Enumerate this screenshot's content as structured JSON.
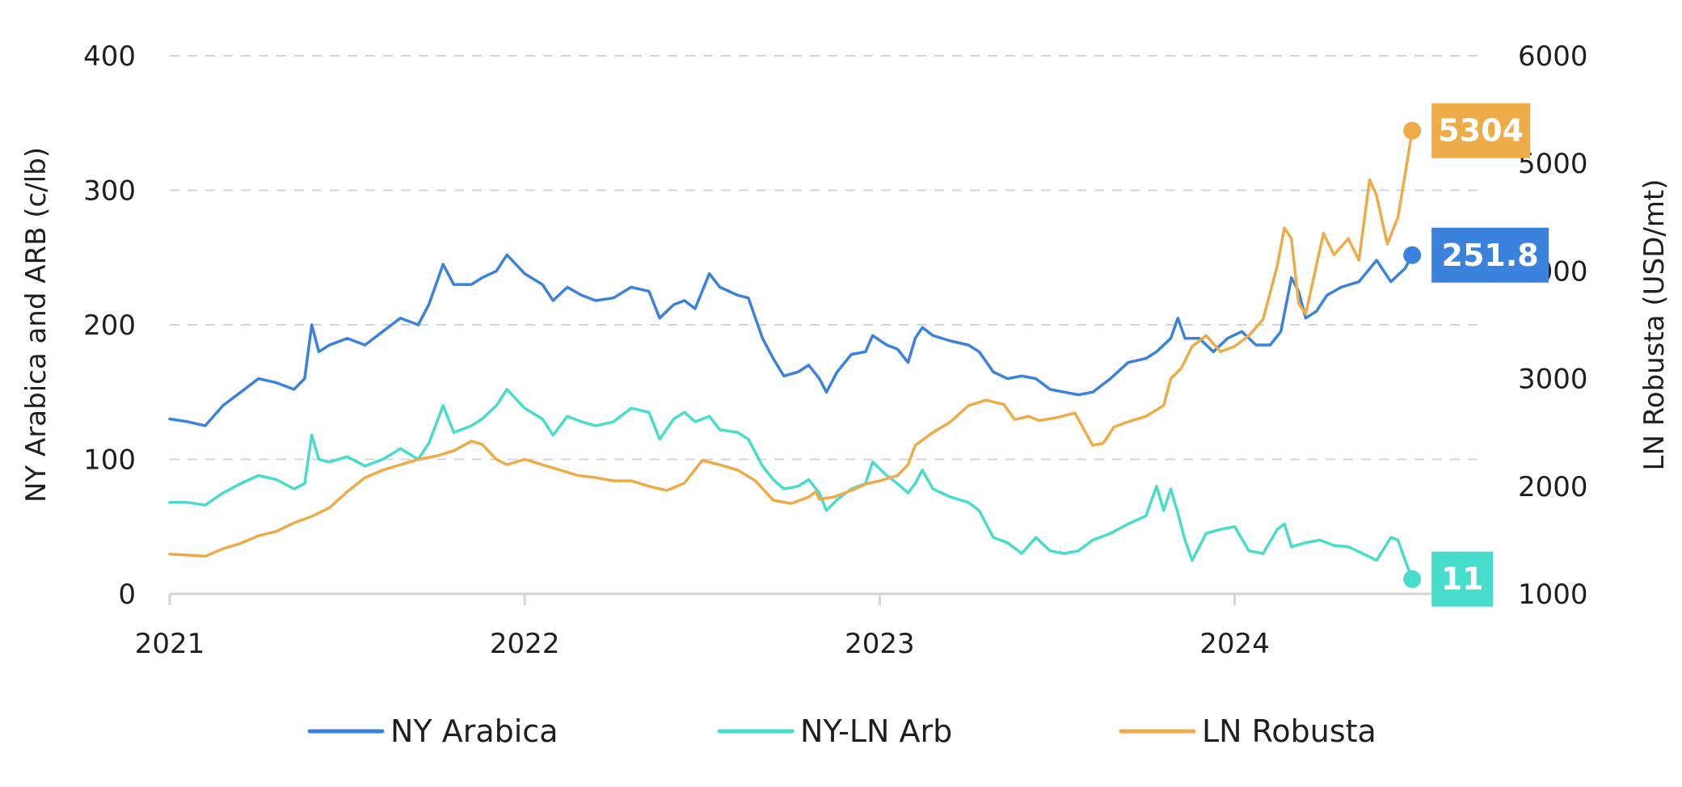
{
  "chart_data": {
    "type": "line",
    "title": "",
    "left_axis": {
      "label": "NY Arabica and ARB (c/lb)",
      "ylim": [
        0,
        400
      ],
      "ticks": [
        0,
        100,
        200,
        300,
        400
      ],
      "tick_labels": [
        "0",
        "100",
        "200",
        "300",
        "400"
      ]
    },
    "right_axis": {
      "label": "LN Robusta (USD/mt)",
      "ylim": [
        1000,
        6000
      ],
      "ticks": [
        1000,
        2000,
        3000,
        4000,
        5000,
        6000
      ],
      "tick_labels": [
        "1000",
        "2000",
        "3000",
        "4000",
        "5000",
        "6000"
      ]
    },
    "x_axis": {
      "xlim": [
        2021.0,
        2024.7
      ],
      "ticks": [
        2021,
        2022,
        2023,
        2024
      ],
      "tick_labels": [
        "2021",
        "2022",
        "2023",
        "2024"
      ]
    },
    "grid": "horizontal-dashed",
    "legend_position": "bottom",
    "series": [
      {
        "name": "NY Arabica",
        "axis": "left",
        "color": "#3b82dc",
        "end_label": "251.8",
        "points": [
          [
            2021.0,
            130
          ],
          [
            2021.05,
            128
          ],
          [
            2021.1,
            125
          ],
          [
            2021.15,
            140
          ],
          [
            2021.2,
            150
          ],
          [
            2021.25,
            160
          ],
          [
            2021.3,
            157
          ],
          [
            2021.35,
            152
          ],
          [
            2021.38,
            160
          ],
          [
            2021.4,
            200
          ],
          [
            2021.42,
            180
          ],
          [
            2021.45,
            185
          ],
          [
            2021.5,
            190
          ],
          [
            2021.55,
            185
          ],
          [
            2021.6,
            195
          ],
          [
            2021.65,
            205
          ],
          [
            2021.7,
            200
          ],
          [
            2021.73,
            215
          ],
          [
            2021.77,
            245
          ],
          [
            2021.8,
            230
          ],
          [
            2021.85,
            230
          ],
          [
            2021.88,
            235
          ],
          [
            2021.92,
            240
          ],
          [
            2021.95,
            252
          ],
          [
            2022.0,
            238
          ],
          [
            2022.05,
            230
          ],
          [
            2022.08,
            218
          ],
          [
            2022.12,
            228
          ],
          [
            2022.16,
            222
          ],
          [
            2022.2,
            218
          ],
          [
            2022.25,
            220
          ],
          [
            2022.3,
            228
          ],
          [
            2022.35,
            225
          ],
          [
            2022.38,
            205
          ],
          [
            2022.42,
            215
          ],
          [
            2022.45,
            218
          ],
          [
            2022.48,
            212
          ],
          [
            2022.52,
            238
          ],
          [
            2022.55,
            228
          ],
          [
            2022.6,
            222
          ],
          [
            2022.63,
            220
          ],
          [
            2022.67,
            190
          ],
          [
            2022.7,
            175
          ],
          [
            2022.73,
            162
          ],
          [
            2022.77,
            165
          ],
          [
            2022.8,
            170
          ],
          [
            2022.83,
            160
          ],
          [
            2022.85,
            150
          ],
          [
            2022.88,
            165
          ],
          [
            2022.92,
            178
          ],
          [
            2022.96,
            180
          ],
          [
            2022.98,
            192
          ],
          [
            2023.02,
            185
          ],
          [
            2023.05,
            182
          ],
          [
            2023.08,
            172
          ],
          [
            2023.1,
            190
          ],
          [
            2023.12,
            198
          ],
          [
            2023.15,
            192
          ],
          [
            2023.2,
            188
          ],
          [
            2023.25,
            185
          ],
          [
            2023.28,
            180
          ],
          [
            2023.32,
            165
          ],
          [
            2023.36,
            160
          ],
          [
            2023.4,
            162
          ],
          [
            2023.44,
            160
          ],
          [
            2023.48,
            152
          ],
          [
            2023.52,
            150
          ],
          [
            2023.56,
            148
          ],
          [
            2023.6,
            150
          ],
          [
            2023.65,
            160
          ],
          [
            2023.7,
            172
          ],
          [
            2023.75,
            175
          ],
          [
            2023.78,
            180
          ],
          [
            2023.82,
            190
          ],
          [
            2023.84,
            205
          ],
          [
            2023.86,
            190
          ],
          [
            2023.9,
            190
          ],
          [
            2023.94,
            180
          ],
          [
            2023.98,
            190
          ],
          [
            2024.02,
            195
          ],
          [
            2024.06,
            185
          ],
          [
            2024.1,
            185
          ],
          [
            2024.13,
            195
          ],
          [
            2024.16,
            235
          ],
          [
            2024.18,
            225
          ],
          [
            2024.2,
            205
          ],
          [
            2024.23,
            210
          ],
          [
            2024.26,
            222
          ],
          [
            2024.3,
            228
          ],
          [
            2024.35,
            232
          ],
          [
            2024.4,
            248
          ],
          [
            2024.44,
            232
          ],
          [
            2024.48,
            242
          ],
          [
            2024.5,
            251.8
          ]
        ]
      },
      {
        "name": "NY-LN Arb",
        "axis": "left",
        "color": "#48dccc",
        "end_label": "11",
        "points": [
          [
            2021.0,
            68
          ],
          [
            2021.05,
            68
          ],
          [
            2021.1,
            66
          ],
          [
            2021.15,
            75
          ],
          [
            2021.2,
            82
          ],
          [
            2021.25,
            88
          ],
          [
            2021.3,
            85
          ],
          [
            2021.35,
            78
          ],
          [
            2021.38,
            82
          ],
          [
            2021.4,
            118
          ],
          [
            2021.42,
            100
          ],
          [
            2021.45,
            98
          ],
          [
            2021.5,
            102
          ],
          [
            2021.55,
            95
          ],
          [
            2021.6,
            100
          ],
          [
            2021.65,
            108
          ],
          [
            2021.7,
            100
          ],
          [
            2021.73,
            112
          ],
          [
            2021.77,
            140
          ],
          [
            2021.8,
            120
          ],
          [
            2021.85,
            125
          ],
          [
            2021.88,
            130
          ],
          [
            2021.92,
            140
          ],
          [
            2021.95,
            152
          ],
          [
            2022.0,
            138
          ],
          [
            2022.05,
            130
          ],
          [
            2022.08,
            118
          ],
          [
            2022.12,
            132
          ],
          [
            2022.16,
            128
          ],
          [
            2022.2,
            125
          ],
          [
            2022.25,
            128
          ],
          [
            2022.3,
            138
          ],
          [
            2022.35,
            135
          ],
          [
            2022.38,
            115
          ],
          [
            2022.42,
            130
          ],
          [
            2022.45,
            135
          ],
          [
            2022.48,
            128
          ],
          [
            2022.52,
            132
          ],
          [
            2022.55,
            122
          ],
          [
            2022.6,
            120
          ],
          [
            2022.63,
            115
          ],
          [
            2022.67,
            95
          ],
          [
            2022.7,
            85
          ],
          [
            2022.73,
            78
          ],
          [
            2022.77,
            80
          ],
          [
            2022.8,
            85
          ],
          [
            2022.83,
            75
          ],
          [
            2022.85,
            62
          ],
          [
            2022.88,
            70
          ],
          [
            2022.92,
            78
          ],
          [
            2022.96,
            82
          ],
          [
            2022.98,
            98
          ],
          [
            2023.02,
            88
          ],
          [
            2023.05,
            82
          ],
          [
            2023.08,
            75
          ],
          [
            2023.1,
            82
          ],
          [
            2023.12,
            92
          ],
          [
            2023.15,
            78
          ],
          [
            2023.2,
            72
          ],
          [
            2023.25,
            68
          ],
          [
            2023.28,
            62
          ],
          [
            2023.32,
            42
          ],
          [
            2023.36,
            38
          ],
          [
            2023.4,
            30
          ],
          [
            2023.44,
            42
          ],
          [
            2023.48,
            32
          ],
          [
            2023.52,
            30
          ],
          [
            2023.56,
            32
          ],
          [
            2023.6,
            40
          ],
          [
            2023.65,
            45
          ],
          [
            2023.7,
            52
          ],
          [
            2023.75,
            58
          ],
          [
            2023.78,
            80
          ],
          [
            2023.8,
            62
          ],
          [
            2023.82,
            78
          ],
          [
            2023.84,
            60
          ],
          [
            2023.86,
            40
          ],
          [
            2023.88,
            25
          ],
          [
            2023.92,
            45
          ],
          [
            2023.96,
            48
          ],
          [
            2024.0,
            50
          ],
          [
            2024.04,
            32
          ],
          [
            2024.08,
            30
          ],
          [
            2024.12,
            48
          ],
          [
            2024.14,
            52
          ],
          [
            2024.16,
            35
          ],
          [
            2024.2,
            38
          ],
          [
            2024.24,
            40
          ],
          [
            2024.28,
            36
          ],
          [
            2024.32,
            35
          ],
          [
            2024.36,
            30
          ],
          [
            2024.4,
            25
          ],
          [
            2024.44,
            42
          ],
          [
            2024.46,
            40
          ],
          [
            2024.48,
            25
          ],
          [
            2024.5,
            11
          ]
        ]
      },
      {
        "name": "LN Robusta",
        "axis": "right",
        "color": "#edac47",
        "end_label": "5304",
        "points": [
          [
            2021.0,
            1370
          ],
          [
            2021.05,
            1360
          ],
          [
            2021.1,
            1350
          ],
          [
            2021.15,
            1420
          ],
          [
            2021.2,
            1470
          ],
          [
            2021.25,
            1540
          ],
          [
            2021.3,
            1580
          ],
          [
            2021.35,
            1660
          ],
          [
            2021.4,
            1720
          ],
          [
            2021.45,
            1800
          ],
          [
            2021.5,
            1950
          ],
          [
            2021.55,
            2080
          ],
          [
            2021.6,
            2150
          ],
          [
            2021.65,
            2200
          ],
          [
            2021.7,
            2250
          ],
          [
            2021.75,
            2280
          ],
          [
            2021.8,
            2330
          ],
          [
            2021.85,
            2420
          ],
          [
            2021.88,
            2390
          ],
          [
            2021.92,
            2250
          ],
          [
            2021.95,
            2200
          ],
          [
            2022.0,
            2250
          ],
          [
            2022.05,
            2200
          ],
          [
            2022.1,
            2150
          ],
          [
            2022.15,
            2100
          ],
          [
            2022.2,
            2080
          ],
          [
            2022.25,
            2050
          ],
          [
            2022.3,
            2050
          ],
          [
            2022.35,
            2000
          ],
          [
            2022.4,
            1960
          ],
          [
            2022.45,
            2030
          ],
          [
            2022.5,
            2240
          ],
          [
            2022.55,
            2200
          ],
          [
            2022.6,
            2150
          ],
          [
            2022.65,
            2050
          ],
          [
            2022.7,
            1870
          ],
          [
            2022.75,
            1840
          ],
          [
            2022.8,
            1900
          ],
          [
            2022.82,
            1950
          ],
          [
            2022.83,
            1880
          ],
          [
            2022.87,
            1900
          ],
          [
            2022.92,
            1960
          ],
          [
            2022.96,
            2020
          ],
          [
            2023.0,
            2050
          ],
          [
            2023.05,
            2100
          ],
          [
            2023.08,
            2200
          ],
          [
            2023.1,
            2380
          ],
          [
            2023.15,
            2500
          ],
          [
            2023.2,
            2600
          ],
          [
            2023.25,
            2750
          ],
          [
            2023.3,
            2800
          ],
          [
            2023.35,
            2760
          ],
          [
            2023.38,
            2620
          ],
          [
            2023.42,
            2650
          ],
          [
            2023.45,
            2610
          ],
          [
            2023.5,
            2640
          ],
          [
            2023.55,
            2680
          ],
          [
            2023.58,
            2500
          ],
          [
            2023.6,
            2380
          ],
          [
            2023.63,
            2400
          ],
          [
            2023.66,
            2550
          ],
          [
            2023.7,
            2600
          ],
          [
            2023.75,
            2650
          ],
          [
            2023.8,
            2750
          ],
          [
            2023.82,
            3000
          ],
          [
            2023.85,
            3100
          ],
          [
            2023.88,
            3300
          ],
          [
            2023.92,
            3400
          ],
          [
            2023.96,
            3250
          ],
          [
            2024.0,
            3300
          ],
          [
            2024.04,
            3400
          ],
          [
            2024.08,
            3550
          ],
          [
            2024.1,
            3800
          ],
          [
            2024.12,
            4050
          ],
          [
            2024.14,
            4400
          ],
          [
            2024.16,
            4300
          ],
          [
            2024.18,
            3700
          ],
          [
            2024.2,
            3600
          ],
          [
            2024.22,
            3900
          ],
          [
            2024.25,
            4350
          ],
          [
            2024.28,
            4150
          ],
          [
            2024.32,
            4300
          ],
          [
            2024.35,
            4100
          ],
          [
            2024.38,
            4850
          ],
          [
            2024.4,
            4700
          ],
          [
            2024.43,
            4250
          ],
          [
            2024.46,
            4500
          ],
          [
            2024.48,
            4900
          ],
          [
            2024.5,
            5304
          ]
        ]
      }
    ]
  }
}
